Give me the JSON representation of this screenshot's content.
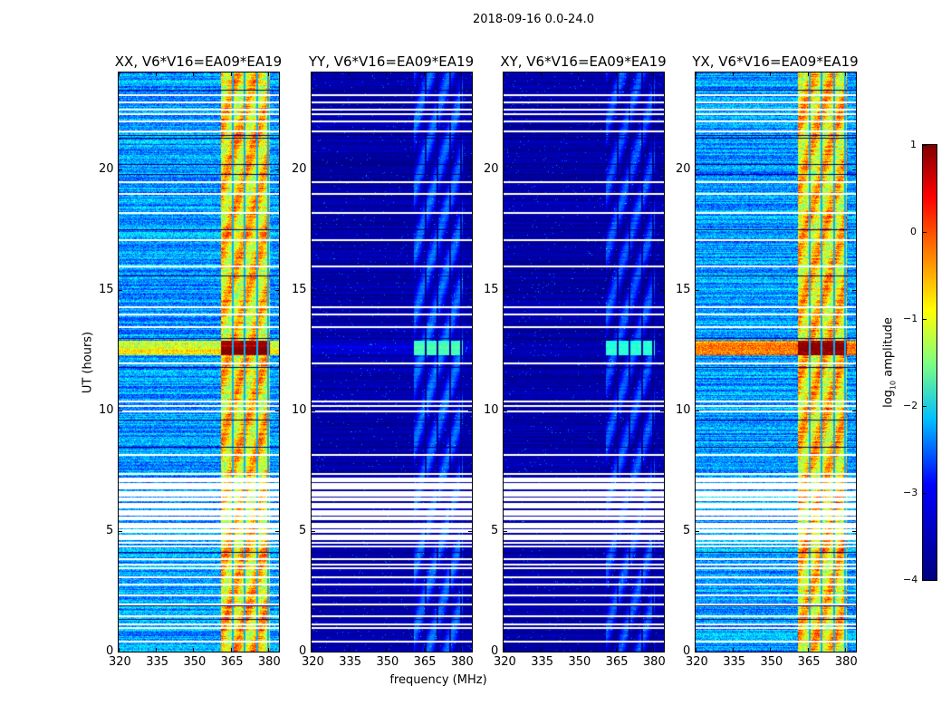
{
  "chart_data": {
    "type": "heatmap",
    "title": "2018-09-16 0.0-24.0",
    "xlabel": "frequency (MHz)",
    "ylabel": "UT (hours)",
    "xlim": [
      320,
      384.4
    ],
    "ylim": [
      0,
      24
    ],
    "xticks": [
      320,
      335,
      350,
      365,
      380
    ],
    "yticks": [
      0,
      5,
      10,
      15,
      20
    ],
    "colorbar": {
      "label": "log10 amplitude",
      "label_main": "log",
      "label_sub": "10",
      "label_rest": " amplitude",
      "range": [
        -4,
        1
      ],
      "ticks": [
        1,
        0,
        -1,
        -2,
        -3,
        -4
      ],
      "tick_labels": [
        "1",
        "0",
        "−1",
        "−2",
        "−3",
        "−4"
      ],
      "colormap": "jet"
    },
    "rfi_band_mhz": [
      361,
      380.5
    ],
    "rfi_channel_lines_mhz": [
      365.5,
      370.5,
      375.5,
      380
    ],
    "flare_hours": [
      12.3,
      12.9
    ],
    "flagged_hours": [
      0.45,
      1.0,
      1.15,
      1.5,
      2.0,
      2.35,
      2.8,
      3.1,
      3.5,
      3.65,
      3.85,
      4.4,
      4.55,
      4.7,
      4.85,
      5.0,
      5.2,
      5.35,
      5.55,
      5.7,
      5.85,
      6.0,
      6.15,
      6.3,
      6.5,
      6.65,
      6.8,
      7.0,
      7.2,
      7.4,
      8.2,
      10.0,
      10.2,
      10.4,
      12.0,
      13.5,
      14.0,
      14.3,
      16.0,
      17.1,
      18.2,
      19.0,
      19.5,
      21.6,
      22.0,
      22.3,
      22.5,
      22.8,
      23.1
    ],
    "dark_hours": [
      1.35,
      1.9,
      4.15,
      8.5,
      9.6,
      11.8,
      13.0,
      15.6,
      17.5,
      19.8,
      20.2,
      21.4,
      21.3,
      23.3
    ],
    "panels": [
      {
        "title": "XX, V6*V16=EA09*EA19",
        "background_log_amp": -2.6,
        "band_log_amp": -0.7,
        "flare_band_log_amp": 1.0,
        "flare_background_log_amp": -1.0
      },
      {
        "title": "YY, V6*V16=EA09*EA19",
        "background_log_amp": -3.8,
        "band_log_amp": -3.3,
        "flare_band_log_amp": -1.8,
        "flare_background_log_amp": -3.6
      },
      {
        "title": "XY, V6*V16=EA09*EA19",
        "background_log_amp": -3.8,
        "band_log_amp": -3.4,
        "flare_band_log_amp": -1.9,
        "flare_background_log_amp": -3.7
      },
      {
        "title": "YX, V6*V16=EA09*EA19",
        "background_log_amp": -2.6,
        "band_log_amp": -0.7,
        "flare_band_log_amp": 1.0,
        "flare_background_log_amp": -0.3
      }
    ]
  }
}
